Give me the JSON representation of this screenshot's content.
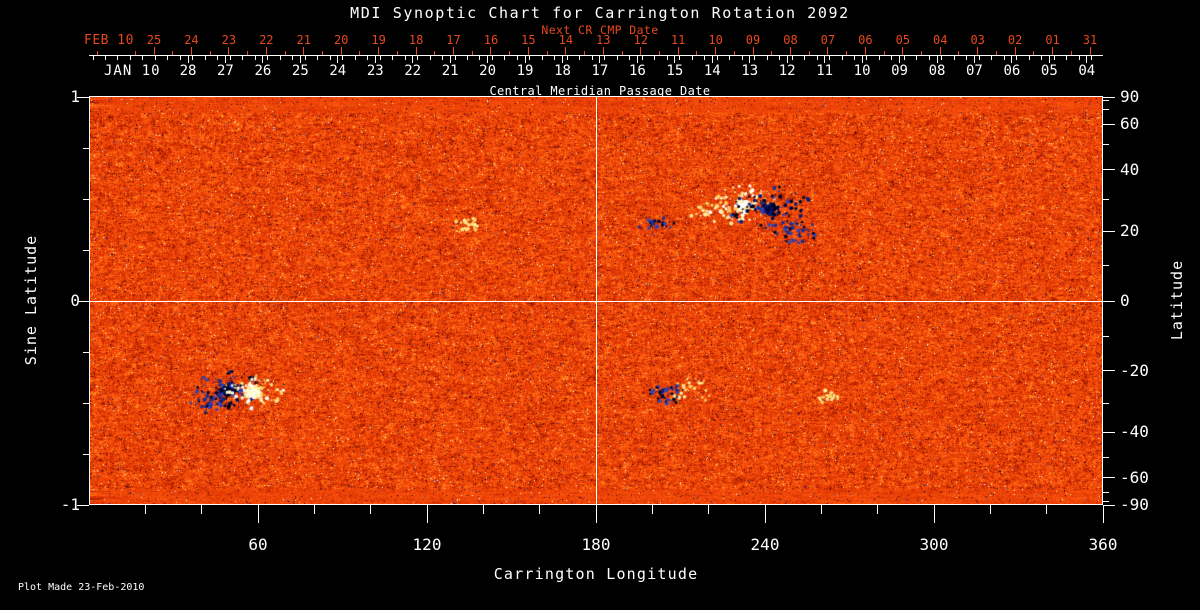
{
  "title": "MDI Synoptic Chart for Carrington Rotation 2092",
  "top_axis": {
    "next_cr_label": "Next CR CMP Date",
    "next_cr_month": "FEB 10",
    "next_cr_days": [
      "25",
      "24",
      "23",
      "22",
      "21",
      "20",
      "19",
      "18",
      "17",
      "16",
      "15",
      "14",
      "13",
      "12",
      "11",
      "10",
      "09",
      "08",
      "07",
      "06",
      "05",
      "04",
      "03",
      "02",
      "01",
      "31"
    ],
    "cmp_month": "JAN 10",
    "cmp_days": [
      "28",
      "27",
      "26",
      "25",
      "24",
      "23",
      "22",
      "21",
      "20",
      "19",
      "18",
      "17",
      "16",
      "15",
      "14",
      "13",
      "12",
      "11",
      "10",
      "09",
      "08",
      "07",
      "06",
      "05",
      "04"
    ],
    "axis_title": "Central Meridian Passage Date"
  },
  "bottom_axis": {
    "title": "Carrington Longitude",
    "tick_labels": [
      "60",
      "120",
      "180",
      "240",
      "300",
      "360"
    ]
  },
  "left_axis": {
    "title": "Sine Latitude",
    "tick_labels": [
      "1",
      "0",
      "-1"
    ],
    "tick_values": [
      1,
      0,
      -1
    ]
  },
  "right_axis": {
    "title": "Latitude",
    "tick_labels": [
      "90",
      "60",
      "40",
      "20",
      "0",
      "-20",
      "-40",
      "-60",
      "-90"
    ],
    "tick_values": [
      90,
      60,
      40,
      20,
      0,
      -20,
      -40,
      -60,
      -90
    ]
  },
  "footer": {
    "plot_made": "Plot Made 23-Feb-2010"
  },
  "colors": {
    "background": "#000000",
    "text": "#ffffff",
    "accent_red": "#e8481c",
    "quiet_sun_mid": "#f04408",
    "palette_stops": [
      [
        0,
        "#280200"
      ],
      [
        0.12,
        "#781000"
      ],
      [
        0.3,
        "#c82800"
      ],
      [
        0.5,
        "#f04408"
      ],
      [
        0.68,
        "#ff6010"
      ],
      [
        0.84,
        "#ff9628"
      ],
      [
        0.94,
        "#ffd264"
      ],
      [
        1,
        "#ffffc8"
      ]
    ],
    "negative_speckle": [
      "#00083c",
      "#10208c",
      "#2840c8"
    ],
    "positive_speckle": "#ffffcc",
    "positive_core": [
      "#ffffff",
      "#fffff4",
      "#ffffd8"
    ],
    "negative_core": [
      "#000018",
      "#000440",
      "#101c70"
    ],
    "positive_fringe": [
      "#ffe080",
      "#ffd060",
      "#fff0a0",
      "#ffc040"
    ],
    "negative_fringe": [
      "#1c2c90",
      "#2c44b8",
      "#000428",
      "#3858d0"
    ]
  },
  "chart_data": {
    "type": "heatmap",
    "title": "MDI Synoptic Chart for Carrington Rotation 2092",
    "carrington_rotation": 2092,
    "xlabel": "Carrington Longitude",
    "ylabel_left": "Sine Latitude",
    "ylabel_right": "Latitude",
    "x_range": [
      0,
      360
    ],
    "y_range_sine_latitude": [
      -1,
      1
    ],
    "x_ticks": [
      60,
      120,
      180,
      240,
      300,
      360
    ],
    "left_ticks_sine_latitude": [
      1,
      0,
      -1
    ],
    "right_ticks_latitude_deg": [
      90,
      60,
      40,
      20,
      0,
      -20,
      -40,
      -60,
      -90
    ],
    "grid": {
      "vertical_line_longitude": 180,
      "horizontal_line_sine_latitude": 0
    },
    "cmp_dates_jan_2010": [
      "28",
      "27",
      "26",
      "25",
      "24",
      "23",
      "22",
      "21",
      "20",
      "19",
      "18",
      "17",
      "16",
      "15",
      "14",
      "13",
      "12",
      "11",
      "10",
      "09",
      "08",
      "07",
      "06",
      "05",
      "04"
    ],
    "next_cr_cmp_dates_feb_2010": [
      "25",
      "24",
      "23",
      "22",
      "21",
      "20",
      "19",
      "18",
      "17",
      "16",
      "15",
      "14",
      "13",
      "12",
      "11",
      "10",
      "09",
      "08",
      "07",
      "06",
      "05",
      "04",
      "03",
      "02",
      "01",
      "31"
    ],
    "field_encoding": "line-of-sight magnetic field: white/yellow = positive polarity, black/blue = negative polarity, orange = quiet sun",
    "plot_made": "23-Feb-2010",
    "active_regions": [
      {
        "longitude": 49.5,
        "latitude": -26,
        "polarity": "negative",
        "strength": "strong",
        "extent_deg": 7
      },
      {
        "longitude": 58,
        "latitude": -26.5,
        "polarity": "positive",
        "strength": "strong",
        "extent_deg": 6
      },
      {
        "longitude": 42,
        "latitude": -30,
        "polarity": "negative",
        "strength": "weak",
        "extent_deg": 5
      },
      {
        "longitude": 232,
        "latitude": 28,
        "polarity": "positive",
        "strength": "strong",
        "extent_deg": 7
      },
      {
        "longitude": 242,
        "latitude": 27,
        "polarity": "negative",
        "strength": "strong",
        "extent_deg": 8
      },
      {
        "longitude": 250,
        "latitude": 20,
        "polarity": "negative",
        "strength": "medium",
        "extent_deg": 6
      },
      {
        "longitude": 222,
        "latitude": 25,
        "polarity": "positive",
        "strength": "weak",
        "extent_deg": 6
      },
      {
        "longitude": 202,
        "latitude": 22,
        "polarity": "negative",
        "strength": "weak",
        "extent_deg": 5
      },
      {
        "longitude": 205,
        "latitude": -27,
        "polarity": "negative",
        "strength": "medium",
        "extent_deg": 5
      },
      {
        "longitude": 214,
        "latitude": -26,
        "polarity": "positive",
        "strength": "weak",
        "extent_deg": 6
      },
      {
        "longitude": 133,
        "latitude": 22,
        "polarity": "positive",
        "strength": "weak",
        "extent_deg": 4
      },
      {
        "longitude": 262,
        "latitude": -28,
        "polarity": "positive",
        "strength": "weak",
        "extent_deg": 3
      }
    ]
  }
}
